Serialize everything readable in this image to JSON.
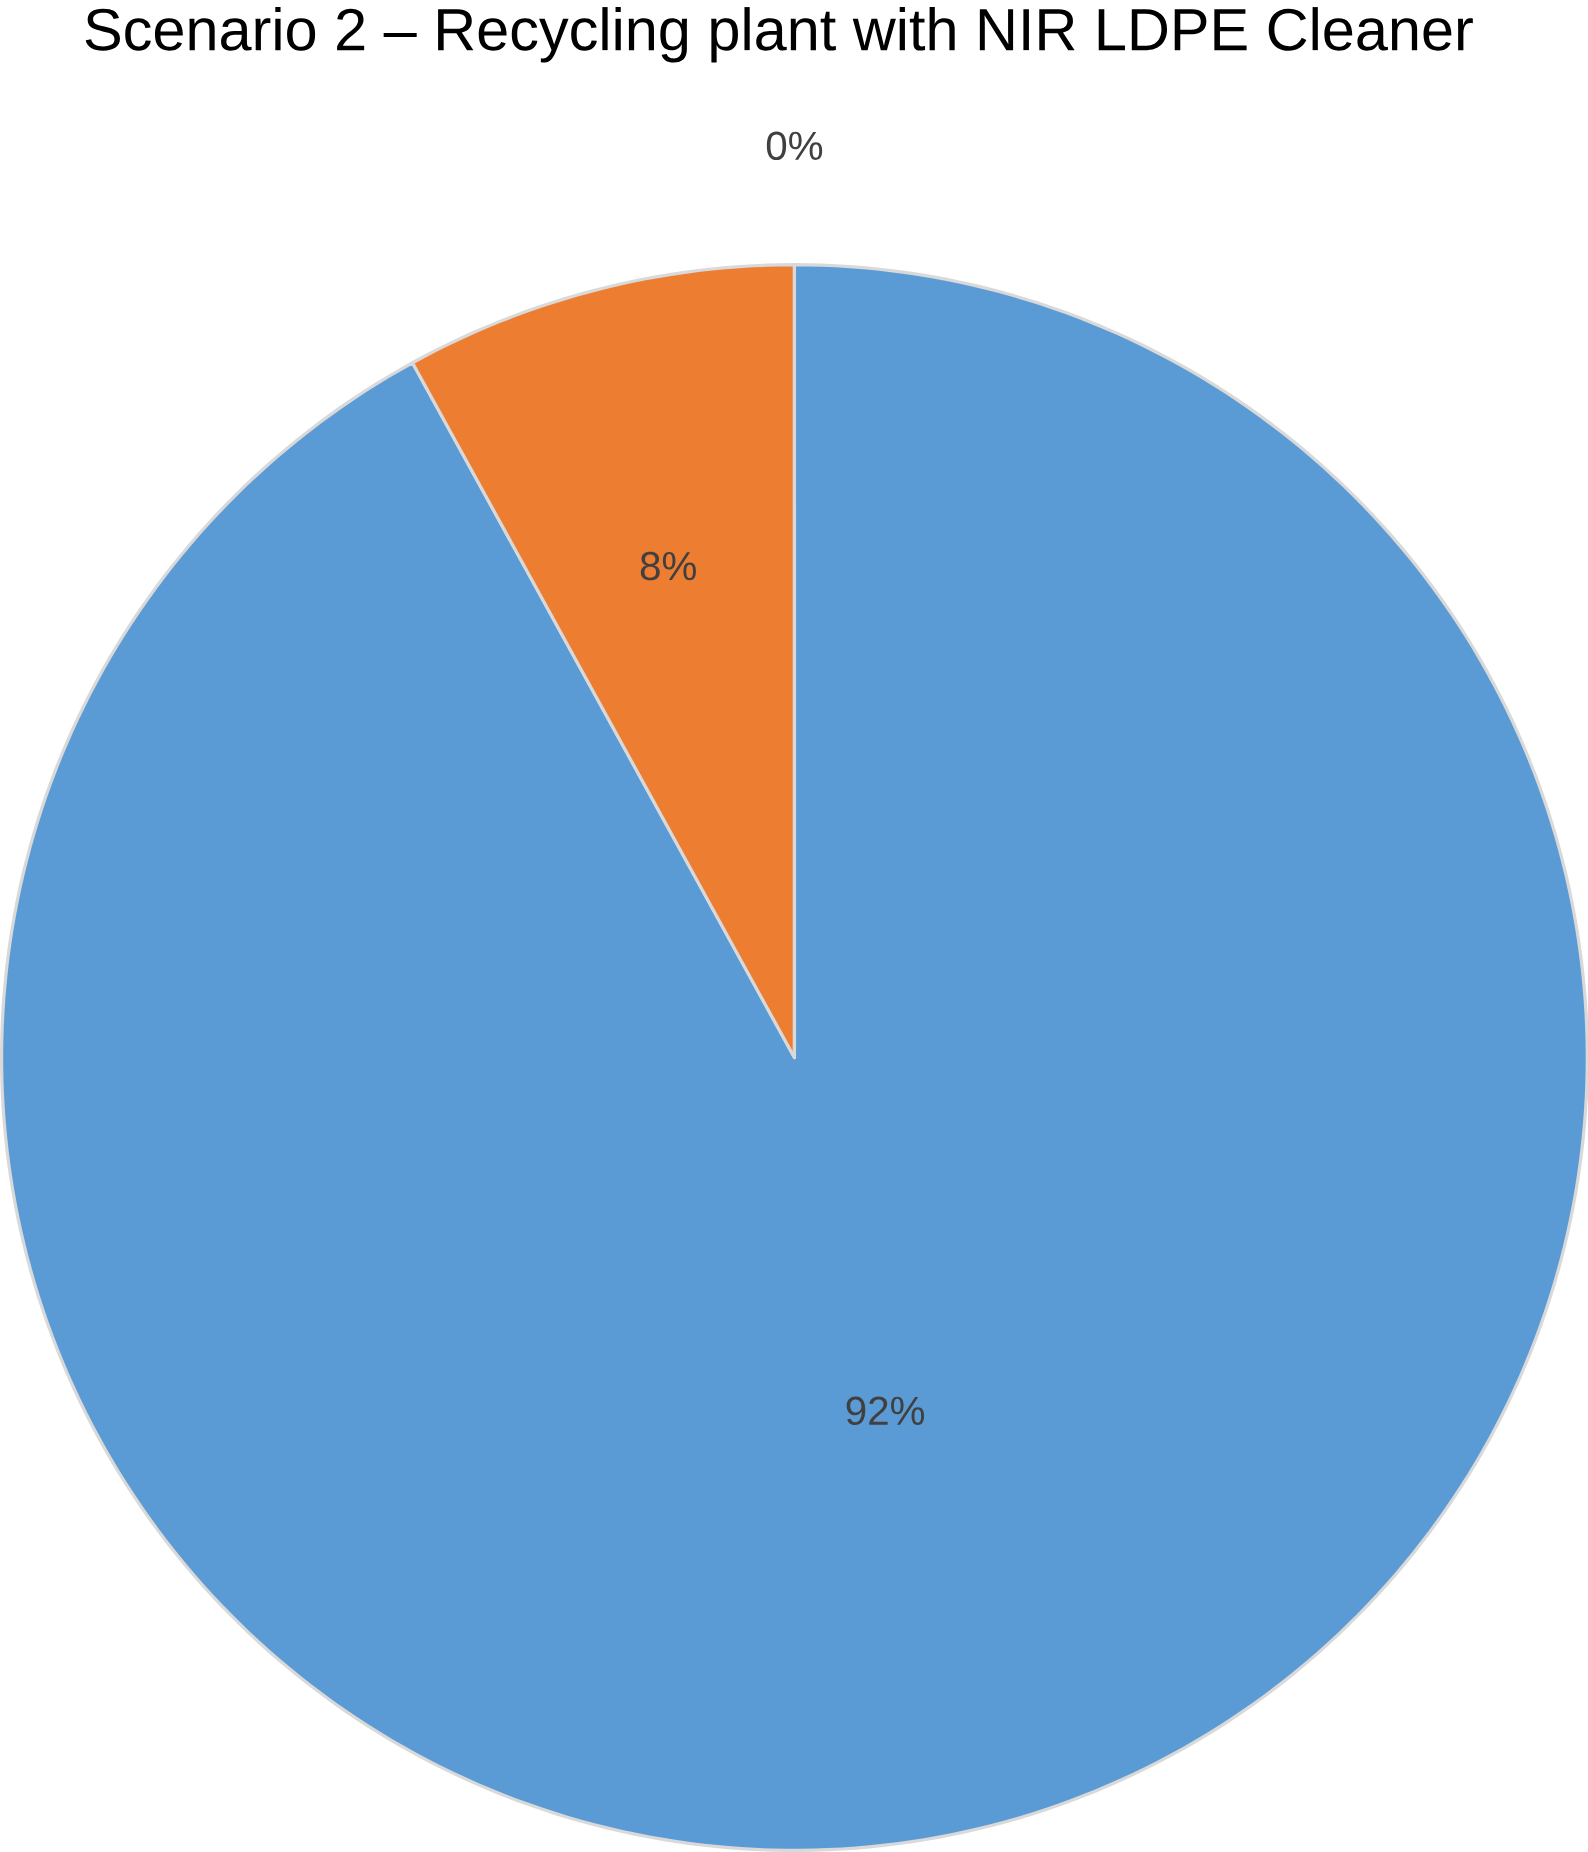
{
  "chart_data": {
    "type": "pie",
    "title": "Scenario 2 – Recycling plant with NIR LDPE Cleaner",
    "categories": [
      null,
      null,
      null
    ],
    "values": [
      92,
      8,
      0
    ],
    "colors": [
      "#5b9bd5",
      "#ed7d31",
      "#a5a5a5"
    ],
    "value_labels": [
      "92%",
      "8%",
      "0%"
    ]
  }
}
